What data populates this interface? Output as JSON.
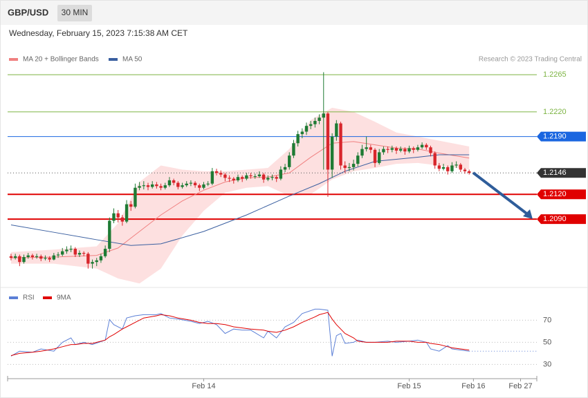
{
  "chart_data": {
    "type": "candlestick",
    "title": "GBP/USD",
    "timeframe": "30 MIN",
    "subtitle": "Wednesday, February 15, 2023 7:15:38 AM CET",
    "source": "Research © 2023 Trading Central",
    "up_color": "#1e7b34",
    "down_color": "#d8262c",
    "xlim": [
      -0.8,
      122.8
    ],
    "xticks": [
      {
        "value": 45,
        "label": "Feb 14"
      },
      {
        "value": 93,
        "label": "Feb 15"
      },
      {
        "value": 108,
        "label": "Feb 16"
      },
      {
        "value": 119,
        "label": "Feb 27"
      }
    ],
    "ylim": [
      1.2008,
      1.2276
    ],
    "levels": [
      {
        "value": 1.2265,
        "label": "1.2265"
      },
      {
        "value": 1.222,
        "label": "1.2220"
      },
      {
        "value": 1.219,
        "label": "1.2190"
      },
      {
        "value": 1.2146,
        "label": "1.2146"
      },
      {
        "value": 1.212,
        "label": "1.2120"
      },
      {
        "value": 1.209,
        "label": "1.2090"
      }
    ],
    "level_colors": [
      "#7cb342",
      "#7cb342",
      "#1a66e0",
      "#333333",
      "#e00000",
      "#e00000"
    ],
    "level_boxed": [
      false,
      false,
      true,
      true,
      true,
      true
    ],
    "level_dotted": [
      false,
      false,
      false,
      true,
      false,
      false
    ],
    "candles": [
      [
        1.2045,
        1.2048,
        1.204,
        1.2043
      ],
      [
        1.2043,
        1.2048,
        1.2041,
        1.2045
      ],
      [
        1.2045,
        1.2047,
        1.2033,
        1.2038
      ],
      [
        1.2038,
        1.2047,
        1.2036,
        1.2044
      ],
      [
        1.2044,
        1.2049,
        1.2042,
        1.2046
      ],
      [
        1.2046,
        1.2048,
        1.2041,
        1.2044
      ],
      [
        1.2044,
        1.2048,
        1.2042,
        1.2045
      ],
      [
        1.2045,
        1.2047,
        1.2039,
        1.2042
      ],
      [
        1.2042,
        1.2046,
        1.204,
        1.2043
      ],
      [
        1.2043,
        1.2045,
        1.2038,
        1.2041
      ],
      [
        1.2041,
        1.2049,
        1.204,
        1.2046
      ],
      [
        1.2046,
        1.205,
        1.2043,
        1.2047
      ],
      [
        1.2047,
        1.2055,
        1.2045,
        1.2051
      ],
      [
        1.2051,
        1.2057,
        1.2048,
        1.2053
      ],
      [
        1.2053,
        1.2058,
        1.205,
        1.2054
      ],
      [
        1.2054,
        1.2056,
        1.2044,
        1.2047
      ],
      [
        1.2047,
        1.2052,
        1.2044,
        1.2049
      ],
      [
        1.2049,
        1.2051,
        1.2045,
        1.2048
      ],
      [
        1.2048,
        1.205,
        1.203,
        1.2036
      ],
      [
        1.2036,
        1.2041,
        1.203,
        1.2038
      ],
      [
        1.2038,
        1.2043,
        1.2033,
        1.204
      ],
      [
        1.204,
        1.2048,
        1.2037,
        1.2045
      ],
      [
        1.2045,
        1.2058,
        1.2043,
        1.2054
      ],
      [
        1.2054,
        1.2092,
        1.205,
        1.2088
      ],
      [
        1.2088,
        1.2103,
        1.2085,
        1.2097
      ],
      [
        1.2097,
        1.2101,
        1.2086,
        1.2092
      ],
      [
        1.2092,
        1.2095,
        1.2082,
        1.2087
      ],
      [
        1.2087,
        1.2113,
        1.2085,
        1.2108
      ],
      [
        1.2108,
        1.2112,
        1.21,
        1.2105
      ],
      [
        1.2105,
        1.2133,
        1.2103,
        1.2128
      ],
      [
        1.2128,
        1.2135,
        1.2125,
        1.213
      ],
      [
        1.213,
        1.2136,
        1.2126,
        1.2131
      ],
      [
        1.2131,
        1.2134,
        1.2125,
        1.2129
      ],
      [
        1.2129,
        1.2136,
        1.2127,
        1.2132
      ],
      [
        1.2132,
        1.2135,
        1.2127,
        1.213
      ],
      [
        1.213,
        1.2133,
        1.2125,
        1.2128
      ],
      [
        1.2128,
        1.2134,
        1.2126,
        1.2131
      ],
      [
        1.2131,
        1.2141,
        1.2129,
        1.2137
      ],
      [
        1.2137,
        1.2139,
        1.2131,
        1.2134
      ],
      [
        1.2134,
        1.2136,
        1.2126,
        1.2129
      ],
      [
        1.2129,
        1.2134,
        1.2127,
        1.2131
      ],
      [
        1.2131,
        1.2136,
        1.2129,
        1.2133
      ],
      [
        1.2133,
        1.2137,
        1.213,
        1.2134
      ],
      [
        1.2134,
        1.2136,
        1.2128,
        1.2131
      ],
      [
        1.2131,
        1.2133,
        1.2124,
        1.2128
      ],
      [
        1.2128,
        1.2135,
        1.2126,
        1.2132
      ],
      [
        1.2132,
        1.2136,
        1.213,
        1.2133
      ],
      [
        1.2133,
        1.2152,
        1.2131,
        1.2148
      ],
      [
        1.2148,
        1.2151,
        1.2143,
        1.2146
      ],
      [
        1.2146,
        1.2149,
        1.2141,
        1.2144
      ],
      [
        1.2144,
        1.2146,
        1.2136,
        1.214
      ],
      [
        1.214,
        1.2143,
        1.2135,
        1.2139
      ],
      [
        1.2139,
        1.2141,
        1.2133,
        1.2137
      ],
      [
        1.2137,
        1.2144,
        1.2135,
        1.2141
      ],
      [
        1.2141,
        1.2143,
        1.2135,
        1.2139
      ],
      [
        1.2139,
        1.2146,
        1.2137,
        1.2143
      ],
      [
        1.2143,
        1.2146,
        1.2139,
        1.2142
      ],
      [
        1.2142,
        1.2145,
        1.2139,
        1.2142
      ],
      [
        1.2142,
        1.2148,
        1.214,
        1.2144
      ],
      [
        1.2144,
        1.2146,
        1.2134,
        1.2138
      ],
      [
        1.2138,
        1.2143,
        1.2136,
        1.214
      ],
      [
        1.214,
        1.2144,
        1.2137,
        1.2141
      ],
      [
        1.2141,
        1.2143,
        1.2135,
        1.2139
      ],
      [
        1.2139,
        1.2154,
        1.2137,
        1.215
      ],
      [
        1.215,
        1.2157,
        1.2147,
        1.2153
      ],
      [
        1.2153,
        1.2171,
        1.215,
        1.2167
      ],
      [
        1.2167,
        1.2186,
        1.2164,
        1.2182
      ],
      [
        1.2182,
        1.2197,
        1.2178,
        1.2193
      ],
      [
        1.2193,
        1.22,
        1.2188,
        1.2196
      ],
      [
        1.2196,
        1.2207,
        1.2192,
        1.2203
      ],
      [
        1.2203,
        1.2209,
        1.2199,
        1.2205
      ],
      [
        1.2205,
        1.2213,
        1.2201,
        1.2209
      ],
      [
        1.2209,
        1.2217,
        1.2205,
        1.2213
      ],
      [
        1.2213,
        1.2268,
        1.215,
        1.2218
      ],
      [
        1.2218,
        1.222,
        1.2117,
        1.215
      ],
      [
        1.215,
        1.2194,
        1.214,
        1.219
      ],
      [
        1.219,
        1.221,
        1.2185,
        1.2206
      ],
      [
        1.2206,
        1.2208,
        1.215,
        1.2155
      ],
      [
        1.2155,
        1.216,
        1.2146,
        1.2152
      ],
      [
        1.2152,
        1.2158,
        1.2148,
        1.2153
      ],
      [
        1.2153,
        1.2162,
        1.2149,
        1.2157
      ],
      [
        1.2157,
        1.2171,
        1.2154,
        1.2167
      ],
      [
        1.2167,
        1.218,
        1.2164,
        1.2175
      ],
      [
        1.2175,
        1.219,
        1.2172,
        1.2177
      ],
      [
        1.2177,
        1.218,
        1.217,
        1.2174
      ],
      [
        1.2174,
        1.2176,
        1.2153,
        1.2158
      ],
      [
        1.2158,
        1.2175,
        1.2156,
        1.2171
      ],
      [
        1.2171,
        1.2178,
        1.2168,
        1.2175
      ],
      [
        1.2175,
        1.2178,
        1.217,
        1.2174
      ],
      [
        1.2174,
        1.2179,
        1.2171,
        1.2176
      ],
      [
        1.2176,
        1.2178,
        1.2169,
        1.2173
      ],
      [
        1.2173,
        1.2178,
        1.2171,
        1.2175
      ],
      [
        1.2175,
        1.2177,
        1.2168,
        1.2172
      ],
      [
        1.2172,
        1.2179,
        1.217,
        1.2176
      ],
      [
        1.2176,
        1.2178,
        1.217,
        1.2174
      ],
      [
        1.2174,
        1.218,
        1.2172,
        1.2177
      ],
      [
        1.2177,
        1.2183,
        1.2175,
        1.218
      ],
      [
        1.218,
        1.2182,
        1.2174,
        1.2177
      ],
      [
        1.2177,
        1.2179,
        1.2166,
        1.217
      ],
      [
        1.217,
        1.2172,
        1.2151,
        1.2155
      ],
      [
        1.2155,
        1.2158,
        1.2148,
        1.2151
      ],
      [
        1.2151,
        1.2157,
        1.2149,
        1.2153
      ],
      [
        1.2153,
        1.2155,
        1.2144,
        1.2148
      ],
      [
        1.2148,
        1.2159,
        1.2146,
        1.2155
      ],
      [
        1.2155,
        1.216,
        1.2152,
        1.2156
      ],
      [
        1.2156,
        1.2158,
        1.2147,
        1.215
      ],
      [
        1.215,
        1.2152,
        1.2145,
        1.2148
      ],
      [
        1.2148,
        1.215,
        1.2144,
        1.2146
      ]
    ],
    "series": [
      {
        "name": "MA 20 + Bollinger Bands",
        "color": "#f08080",
        "band_color": "#fde0e0",
        "x": [
          0,
          10,
          20,
          25,
          30,
          35,
          40,
          45,
          50,
          55,
          60,
          65,
          70,
          75,
          80,
          85,
          90,
          95,
          100,
          107
        ],
        "values": [
          1.2043,
          1.2044,
          1.2046,
          1.2055,
          1.2075,
          1.2095,
          1.2112,
          1.2125,
          1.2135,
          1.214,
          1.2141,
          1.2146,
          1.2165,
          1.2182,
          1.2184,
          1.218,
          1.2176,
          1.2175,
          1.217,
          1.2164
        ],
        "upper": [
          1.205,
          1.2053,
          1.2057,
          1.2085,
          1.2135,
          1.2155,
          1.215,
          1.2148,
          1.2148,
          1.215,
          1.2152,
          1.2175,
          1.221,
          1.2225,
          1.222,
          1.2208,
          1.2195,
          1.219,
          1.2185,
          1.2178
        ],
        "lower": [
          1.2036,
          1.2036,
          1.203,
          1.2018,
          1.2012,
          1.203,
          1.207,
          1.21,
          1.2122,
          1.2128,
          1.213,
          1.2118,
          1.212,
          1.2138,
          1.2148,
          1.2152,
          1.2157,
          1.2158,
          1.2155,
          1.215
        ]
      },
      {
        "name": "MA 50",
        "color": "#3a5fa0",
        "x": [
          0,
          10,
          20,
          28,
          35,
          45,
          55,
          65,
          72,
          78,
          85,
          95,
          100,
          107
        ],
        "values": [
          1.2083,
          1.2074,
          1.2065,
          1.2058,
          1.206,
          1.2075,
          1.2095,
          1.2118,
          1.2133,
          1.2148,
          1.216,
          1.2165,
          1.2168,
          1.2168
        ]
      }
    ],
    "rsi": {
      "ylim": [
        19,
        94
      ],
      "yticks": [
        30,
        50,
        70
      ],
      "x": [
        0,
        2,
        5,
        7,
        10,
        12,
        14,
        15,
        17,
        19,
        22,
        23,
        24,
        26,
        27,
        29,
        31,
        34,
        35,
        37,
        39,
        42,
        44,
        46,
        48,
        50,
        52,
        54,
        56,
        59,
        60,
        62,
        64,
        66,
        68,
        71,
        72,
        74,
        75,
        76,
        77,
        78,
        80,
        81,
        83,
        85,
        88,
        90,
        93,
        95,
        97,
        98,
        100,
        102,
        103,
        105,
        107
      ],
      "series": [
        {
          "name": "RSI",
          "color": "#5b7fd6",
          "values": [
            37.5,
            42,
            41,
            44,
            42,
            50,
            54,
            48,
            50,
            48,
            52,
            70.6,
            66,
            62,
            72,
            74,
            75,
            75,
            76,
            72,
            71,
            69,
            67,
            69,
            66,
            58,
            62,
            61,
            61,
            54,
            60,
            54,
            64,
            68,
            76,
            80,
            80,
            79,
            37.5,
            56,
            58,
            49,
            50,
            52,
            50,
            50,
            51,
            50,
            51,
            52,
            50,
            44,
            42,
            47,
            44,
            43,
            42
          ]
        },
        {
          "name": "9MA",
          "color": "#e00000",
          "values": [
            38,
            40,
            41,
            42,
            44,
            46,
            48,
            48,
            49,
            49,
            52,
            55,
            57,
            62,
            64,
            68,
            72,
            74,
            75,
            74,
            72,
            70,
            68,
            67,
            67,
            66,
            64,
            63,
            62,
            61,
            60,
            59,
            61,
            64,
            68,
            73,
            75,
            77,
            71,
            66,
            62,
            58,
            54,
            51,
            50,
            50,
            50,
            51,
            51,
            50,
            50,
            49,
            48,
            46,
            45,
            44,
            43
          ]
        }
      ]
    }
  }
}
